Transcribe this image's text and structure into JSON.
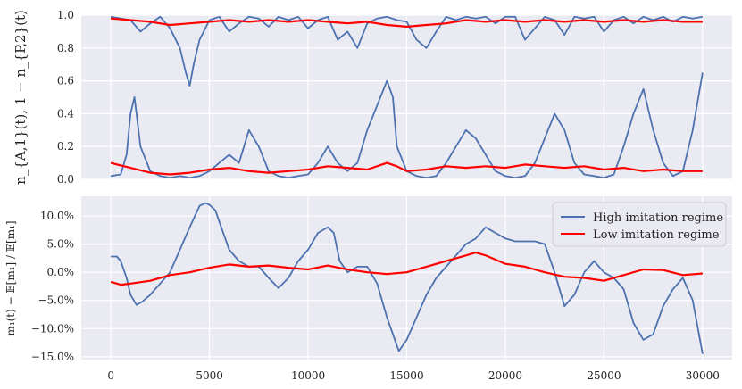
{
  "chart_data": [
    {
      "type": "line",
      "title": "",
      "xlabel": "",
      "ylabel": "n_{A,1}(t), 1 − n_{P,2}(t)",
      "xlim": [
        -1500,
        31500
      ],
      "ylim": [
        0.0,
        1.0
      ],
      "yticks": [
        0.0,
        0.2,
        0.4,
        0.6,
        0.8,
        1.0
      ],
      "ytick_labels": [
        "0.0",
        "0.2",
        "0.4",
        "0.6",
        "0.8",
        "1.0"
      ],
      "grid": true,
      "series": [
        {
          "color": "#4c72b0",
          "x": [
            0,
            500,
            800,
            1000,
            1200,
            1500,
            2000,
            2500,
            3000,
            3500,
            4000,
            4500,
            5000,
            5500,
            6000,
            6500,
            7000,
            7500,
            8000,
            8500,
            9000,
            9500,
            10000,
            10500,
            11000,
            11500,
            12000,
            12500,
            13000,
            13500,
            14000,
            14300,
            14500,
            15000,
            15500,
            16000,
            16500,
            17000,
            17500,
            18000,
            18500,
            19000,
            19500,
            20000,
            20500,
            21000,
            21500,
            22000,
            22500,
            23000,
            23500,
            24000,
            24500,
            25000,
            25500,
            26000,
            26500,
            27000,
            27500,
            28000,
            28500,
            29000,
            29500,
            30000
          ],
          "y": [
            0.02,
            0.03,
            0.15,
            0.4,
            0.5,
            0.2,
            0.05,
            0.02,
            0.01,
            0.02,
            0.01,
            0.02,
            0.05,
            0.1,
            0.15,
            0.1,
            0.3,
            0.2,
            0.05,
            0.02,
            0.01,
            0.02,
            0.03,
            0.1,
            0.2,
            0.1,
            0.05,
            0.1,
            0.3,
            0.45,
            0.6,
            0.5,
            0.2,
            0.05,
            0.02,
            0.01,
            0.02,
            0.1,
            0.2,
            0.3,
            0.25,
            0.15,
            0.05,
            0.02,
            0.01,
            0.02,
            0.1,
            0.25,
            0.4,
            0.3,
            0.1,
            0.03,
            0.02,
            0.01,
            0.03,
            0.2,
            0.4,
            0.55,
            0.3,
            0.1,
            0.02,
            0.05,
            0.3,
            0.65
          ]
        },
        {
          "color": "#4c72b0",
          "x": [
            0,
            1000,
            1500,
            2000,
            2500,
            3000,
            3500,
            3800,
            4000,
            4200,
            4500,
            5000,
            5500,
            6000,
            6500,
            7000,
            7500,
            8000,
            8500,
            9000,
            9500,
            10000,
            10500,
            11000,
            11500,
            12000,
            12500,
            13000,
            13500,
            14000,
            14500,
            15000,
            15500,
            16000,
            16500,
            17000,
            17500,
            18000,
            18500,
            19000,
            19500,
            20000,
            20500,
            21000,
            21500,
            22000,
            22500,
            23000,
            23500,
            24000,
            24500,
            25000,
            25500,
            26000,
            26500,
            27000,
            27500,
            28000,
            28500,
            29000,
            29500,
            30000
          ],
          "y": [
            0.99,
            0.97,
            0.9,
            0.95,
            0.99,
            0.92,
            0.8,
            0.65,
            0.57,
            0.7,
            0.85,
            0.97,
            0.99,
            0.9,
            0.95,
            0.99,
            0.98,
            0.93,
            0.99,
            0.97,
            0.99,
            0.92,
            0.97,
            0.99,
            0.85,
            0.9,
            0.8,
            0.95,
            0.98,
            0.99,
            0.97,
            0.96,
            0.85,
            0.8,
            0.9,
            0.99,
            0.97,
            0.99,
            0.98,
            0.99,
            0.95,
            0.99,
            0.99,
            0.85,
            0.92,
            0.99,
            0.97,
            0.88,
            0.99,
            0.98,
            0.99,
            0.9,
            0.97,
            0.99,
            0.95,
            0.99,
            0.97,
            0.99,
            0.96,
            0.99,
            0.98,
            0.99
          ]
        },
        {
          "color": "#ff0000",
          "x": [
            0,
            1000,
            2000,
            3000,
            4000,
            5000,
            6000,
            7000,
            8000,
            9000,
            10000,
            11000,
            12000,
            13000,
            14000,
            14500,
            15000,
            16000,
            17000,
            18000,
            19000,
            20000,
            21000,
            22000,
            23000,
            24000,
            25000,
            26000,
            27000,
            28000,
            29000,
            30000
          ],
          "y": [
            0.1,
            0.07,
            0.04,
            0.03,
            0.04,
            0.06,
            0.07,
            0.05,
            0.04,
            0.05,
            0.06,
            0.08,
            0.07,
            0.06,
            0.1,
            0.08,
            0.05,
            0.06,
            0.08,
            0.07,
            0.08,
            0.07,
            0.09,
            0.08,
            0.07,
            0.08,
            0.06,
            0.07,
            0.05,
            0.06,
            0.05,
            0.05
          ]
        },
        {
          "color": "#ff0000",
          "x": [
            0,
            1000,
            2000,
            3000,
            4000,
            5000,
            6000,
            7000,
            8000,
            9000,
            10000,
            11000,
            12000,
            13000,
            14000,
            15000,
            16000,
            17000,
            18000,
            19000,
            20000,
            21000,
            22000,
            23000,
            24000,
            25000,
            26000,
            27000,
            28000,
            29000,
            30000
          ],
          "y": [
            0.98,
            0.97,
            0.96,
            0.94,
            0.95,
            0.96,
            0.97,
            0.96,
            0.97,
            0.96,
            0.97,
            0.96,
            0.95,
            0.96,
            0.94,
            0.93,
            0.94,
            0.95,
            0.97,
            0.96,
            0.97,
            0.96,
            0.97,
            0.96,
            0.97,
            0.96,
            0.97,
            0.96,
            0.97,
            0.96,
            0.96
          ]
        }
      ]
    },
    {
      "type": "line",
      "title": "",
      "xlabel": "",
      "ylabel": "m₁(t) − 𝔼[m₁] / 𝔼[m₁]",
      "xlim": [
        -1500,
        31500
      ],
      "ylim": [
        -0.155,
        0.135
      ],
      "yticks": [
        -0.15,
        -0.1,
        -0.05,
        0.0,
        0.05,
        0.1
      ],
      "ytick_labels": [
        "−15.0%",
        "−10.0%",
        "−5.0%",
        "0.0%",
        "5.0%",
        "10.0%"
      ],
      "xticks": [
        0,
        5000,
        10000,
        15000,
        20000,
        25000,
        30000
      ],
      "xtick_labels": [
        "0",
        "5000",
        "10000",
        "15000",
        "20000",
        "25000",
        "30000"
      ],
      "grid": true,
      "legend_position": "top-right",
      "series": [
        {
          "name": "High imitation regime",
          "color": "#4c72b0",
          "x": [
            0,
            300,
            500,
            800,
            1000,
            1300,
            1600,
            2000,
            2500,
            3000,
            3500,
            4000,
            4500,
            4800,
            5000,
            5300,
            5600,
            6000,
            6500,
            7000,
            7500,
            8000,
            8500,
            9000,
            9500,
            10000,
            10500,
            11000,
            11300,
            11600,
            12000,
            12500,
            13000,
            13500,
            14000,
            14300,
            14600,
            15000,
            15500,
            16000,
            16500,
            17000,
            17500,
            18000,
            18500,
            19000,
            19500,
            20000,
            20500,
            21000,
            21500,
            22000,
            22500,
            23000,
            23500,
            24000,
            24500,
            25000,
            25500,
            26000,
            26500,
            27000,
            27500,
            28000,
            28500,
            29000,
            29500,
            30000
          ],
          "y": [
            0.028,
            0.028,
            0.02,
            -0.01,
            -0.04,
            -0.058,
            -0.052,
            -0.04,
            -0.02,
            0.0,
            0.04,
            0.08,
            0.118,
            0.123,
            0.12,
            0.11,
            0.08,
            0.04,
            0.02,
            0.01,
            0.01,
            -0.01,
            -0.028,
            -0.01,
            0.02,
            0.04,
            0.07,
            0.08,
            0.07,
            0.02,
            0.0,
            0.01,
            0.01,
            -0.02,
            -0.08,
            -0.11,
            -0.14,
            -0.12,
            -0.08,
            -0.04,
            -0.01,
            0.01,
            0.03,
            0.05,
            0.06,
            0.08,
            0.07,
            0.06,
            0.055,
            0.055,
            0.055,
            0.05,
            0.0,
            -0.06,
            -0.04,
            0.0,
            0.02,
            0.0,
            -0.01,
            -0.03,
            -0.09,
            -0.12,
            -0.11,
            -0.06,
            -0.03,
            -0.01,
            -0.05,
            -0.145
          ]
        },
        {
          "name": "Low imitation regime",
          "color": "#ff0000",
          "x": [
            0,
            500,
            1000,
            2000,
            3000,
            4000,
            5000,
            6000,
            7000,
            8000,
            9000,
            10000,
            11000,
            12000,
            13000,
            14000,
            15000,
            16000,
            17000,
            18000,
            18500,
            19000,
            20000,
            21000,
            22000,
            23000,
            24000,
            25000,
            26000,
            27000,
            28000,
            29000,
            30000
          ],
          "y": [
            -0.017,
            -0.022,
            -0.02,
            -0.015,
            -0.005,
            0.0,
            0.008,
            0.014,
            0.01,
            0.012,
            0.008,
            0.005,
            0.012,
            0.005,
            0.0,
            -0.003,
            0.0,
            0.01,
            0.02,
            0.03,
            0.035,
            0.03,
            0.015,
            0.01,
            0.0,
            -0.008,
            -0.01,
            -0.015,
            -0.005,
            0.005,
            0.004,
            -0.005,
            -0.002
          ]
        }
      ]
    }
  ]
}
